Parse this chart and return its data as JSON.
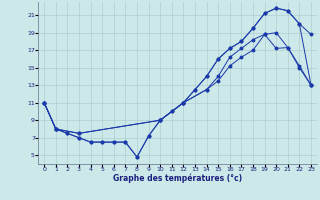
{
  "xlabel": "Graphe des températures (°c)",
  "background_color": "#cde8e8",
  "grid_color": "#a8c8cc",
  "line_color": "#1a3aaa",
  "ylim": [
    4.0,
    22.5
  ],
  "xlim": [
    -0.5,
    23.5
  ],
  "yticks": [
    5,
    7,
    9,
    11,
    13,
    15,
    17,
    19,
    21
  ],
  "xticks": [
    0,
    1,
    2,
    3,
    4,
    5,
    6,
    7,
    8,
    9,
    10,
    11,
    12,
    13,
    14,
    15,
    16,
    17,
    18,
    19,
    20,
    21,
    22,
    23
  ],
  "series1_x": [
    0,
    1,
    2,
    3,
    4,
    5,
    6,
    7,
    8,
    9,
    10,
    11,
    12,
    13,
    14,
    15,
    16,
    17,
    18,
    19,
    20,
    21,
    22,
    23
  ],
  "series1_y": [
    11,
    8,
    7.5,
    7,
    6.5,
    6.5,
    6.5,
    6.5,
    4.8,
    7.2,
    9.0,
    10.0,
    11.0,
    12.5,
    14.0,
    16.0,
    17.2,
    18.0,
    19.5,
    21.2,
    21.8,
    21.5,
    20.0,
    18.8
  ],
  "series2_x": [
    0,
    1,
    2,
    3,
    4,
    5,
    6,
    7,
    8,
    9,
    10,
    11,
    12,
    13,
    14,
    15,
    16,
    17,
    18,
    19,
    20,
    21,
    22,
    23
  ],
  "series2_y": [
    11,
    8,
    7.5,
    7,
    6.5,
    6.5,
    6.5,
    6.5,
    4.8,
    7.2,
    9.0,
    10.0,
    11.0,
    12.5,
    14.0,
    16.0,
    17.2,
    18.0,
    19.5,
    21.2,
    21.8,
    21.5,
    20.0,
    13.0
  ],
  "series3_x": [
    0,
    1,
    3,
    10,
    12,
    14,
    15,
    16,
    17,
    18,
    19,
    20,
    21,
    22,
    23
  ],
  "series3_y": [
    11,
    8,
    7.5,
    9.0,
    11.0,
    12.5,
    14.0,
    16.2,
    17.2,
    18.2,
    18.8,
    17.2,
    17.3,
    15.0,
    13.0
  ],
  "series4_x": [
    0,
    1,
    3,
    10,
    12,
    14,
    15,
    16,
    17,
    18,
    19,
    20,
    21,
    22,
    23
  ],
  "series4_y": [
    11,
    8,
    7.5,
    9.0,
    11.0,
    12.5,
    13.5,
    15.2,
    16.2,
    17.0,
    18.8,
    19.0,
    17.3,
    15.2,
    13.0
  ]
}
